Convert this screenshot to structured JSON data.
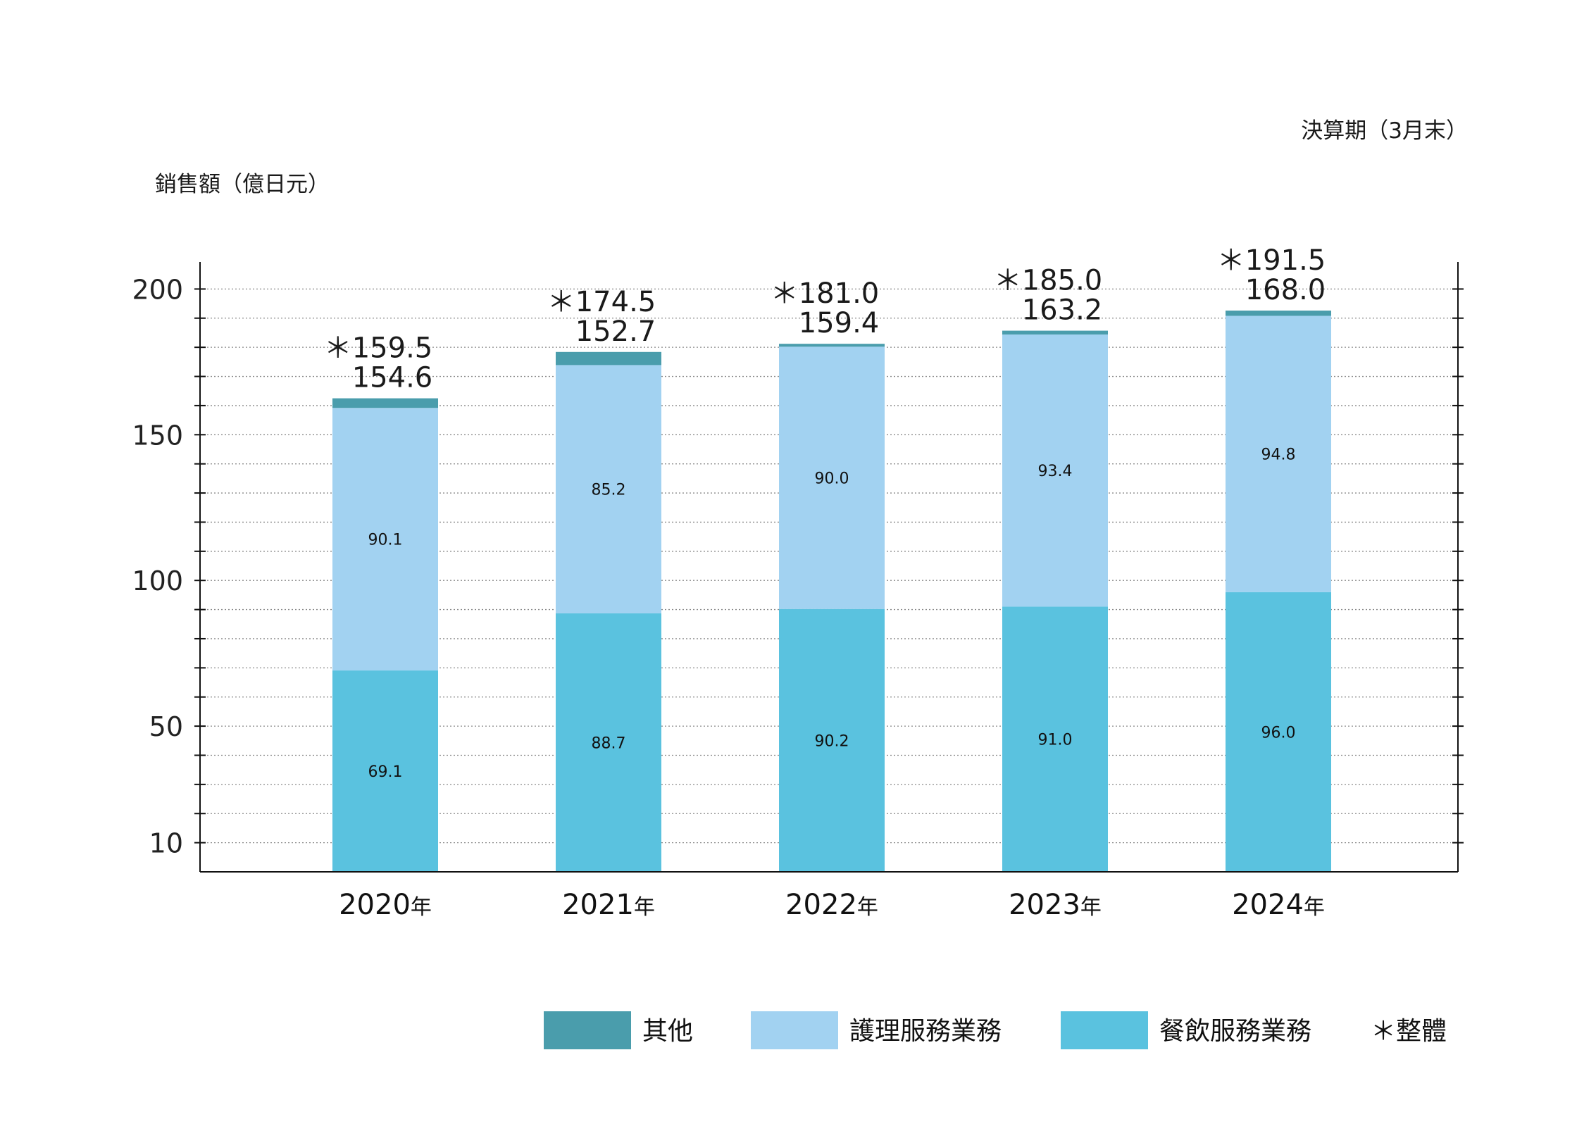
{
  "chart_data": {
    "type": "bar",
    "stacked": true,
    "ylabel": "銷售額（億日元）",
    "xlabel": "決算期（3月末）",
    "ylim": [
      0,
      200
    ],
    "yticks": [
      10,
      50,
      100,
      150,
      200
    ],
    "categories": [
      "2020",
      "2021",
      "2022",
      "2023",
      "2024"
    ],
    "category_suffix": "年",
    "series": [
      {
        "name": "餐飲服務業務",
        "color": "#5ac2df",
        "values": [
          69.1,
          88.7,
          90.2,
          91.0,
          96.0
        ]
      },
      {
        "name": "護理服務業務",
        "color": "#a2d2f1",
        "values": [
          90.1,
          85.2,
          90.0,
          93.4,
          94.8
        ]
      },
      {
        "name": "其他",
        "color": "#4a9dac",
        "values": [
          3.3,
          4.5,
          1.0,
          1.3,
          1.8
        ]
      }
    ],
    "series_label_indices": [
      0,
      1
    ],
    "totals_overall": [
      "＊159.5",
      "＊174.5",
      "＊181.0",
      "＊185.0",
      "＊191.5"
    ],
    "totals_secondary": [
      "154.6",
      "152.7",
      "159.4",
      "163.2",
      "168.0"
    ],
    "legend": {
      "placement": "bottom-right",
      "items": [
        {
          "label": "其他",
          "color": "#4a9dac"
        },
        {
          "label": "護理服務業務",
          "color": "#a2d2f1"
        },
        {
          "label": "餐飲服務業務",
          "color": "#5ac2df"
        }
      ],
      "note": "＊整體"
    },
    "grid": "dotted-horizontal"
  }
}
